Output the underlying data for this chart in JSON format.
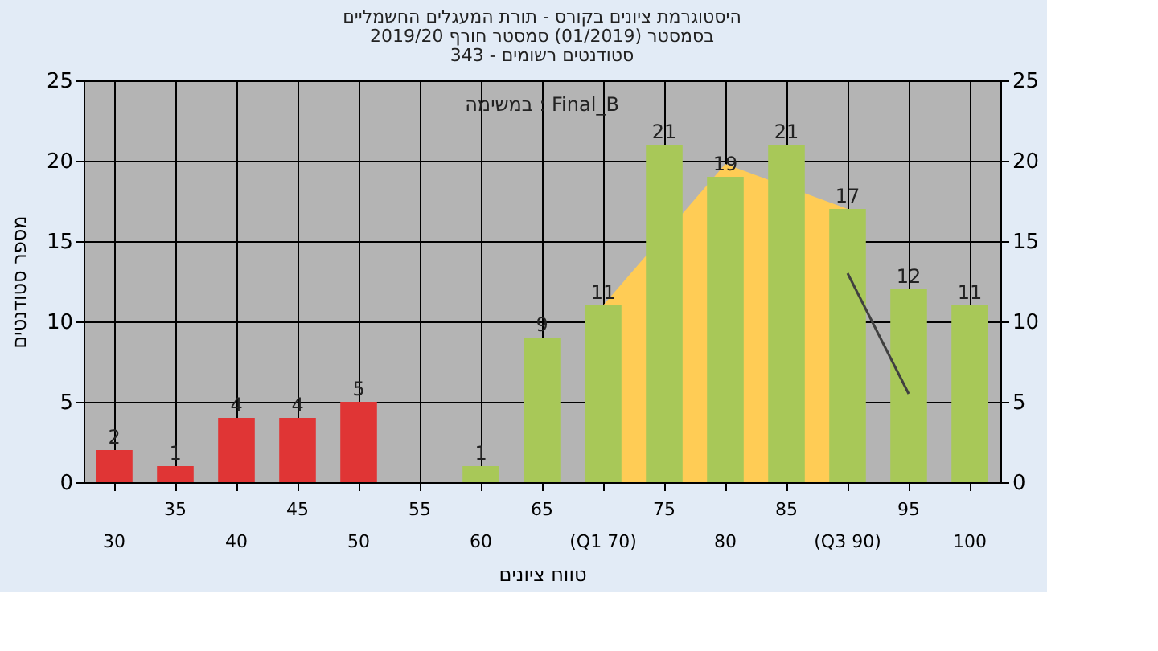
{
  "chart_data": {
    "type": "bar",
    "title": [
      "היסטוגרמת ציונים בקורס - תורת המעגלים החשמליים",
      "בסמסטר (01/2019) סמסטר חורף 2019/20",
      "סטודנטים רשומים - 343"
    ],
    "xlabel": "טווח ציונים",
    "ylabel": "מספר סטודנטים",
    "categories": [
      "30",
      "35",
      "40",
      "45",
      "50",
      "55",
      "60",
      "65",
      "(Q1 70)",
      "75",
      "80",
      "85",
      "(Q3 90)",
      "95",
      "100"
    ],
    "series": [
      {
        "type": "area",
        "color": "#ffcc55",
        "values": [
          null,
          null,
          null,
          null,
          null,
          null,
          null,
          null,
          11,
          null,
          19.8,
          null,
          17,
          null,
          null
        ]
      },
      {
        "values": [
          2,
          1,
          4,
          4,
          5,
          0,
          1,
          9,
          11,
          21,
          19,
          21,
          17,
          12,
          11
        ],
        "colors": [
          "#e03535",
          "#e03535",
          "#e03535",
          "#e03535",
          "#e03535",
          "#e03535",
          "#a8c858",
          "#a8c858",
          "#a8c858",
          "#a8c858",
          "#a8c858",
          "#a8c858",
          "#a8c858",
          "#a8c858",
          "#a8c858"
        ],
        "value_labels": [
          "2",
          "1",
          "4",
          "4",
          "5",
          null,
          "1",
          "9",
          "11",
          "21",
          "19",
          "21",
          "17",
          "12",
          "11"
        ]
      },
      {
        "type": "line",
        "color": "#404040",
        "values": [
          null,
          null,
          null,
          null,
          null,
          null,
          null,
          null,
          null,
          null,
          null,
          null,
          13,
          5.5,
          null
        ]
      }
    ],
    "ylim": [
      0,
      25
    ],
    "yticks": [
      0,
      5,
      10,
      15,
      20,
      25
    ],
    "y2lim": [
      0,
      25
    ],
    "y2ticks": [
      0,
      5,
      10,
      15,
      20,
      25
    ],
    "grid": true,
    "annotations": [
      "במשימה : Final_B"
    ]
  }
}
